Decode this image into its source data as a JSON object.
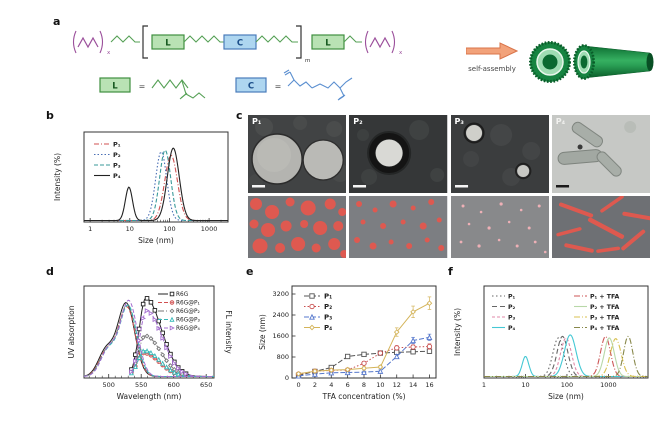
{
  "figure": {
    "panels": {
      "a": "a",
      "b": "b",
      "c": "c",
      "d": "d",
      "e": "e",
      "f": "f"
    }
  },
  "panel_a": {
    "l_symbol": "L",
    "c_symbol": "C",
    "equals": "=",
    "peg_sub": "x",
    "repeat_sub": "m",
    "arrow_label": "self-assembly",
    "colors": {
      "l_block": "#b9e2b4",
      "c_block": "#aed6f0",
      "peg": "#9b4f9b",
      "linker": "#55a055",
      "tube_green": "#168441",
      "arrow": "#f2a27a"
    }
  },
  "panel_c": {
    "tem_labels": [
      "P₁",
      "P₂",
      "P₃",
      "P₄"
    ]
  },
  "chart_data": [
    {
      "panel": "b",
      "type": "line",
      "xscale": "log",
      "xlabel": "Size (nm)",
      "ylabel": "Intensity (%)",
      "xticks": [
        1,
        10,
        100,
        1000
      ],
      "xlim": [
        0.7,
        3000
      ],
      "legend_position": "top-left",
      "grid": false,
      "series": [
        {
          "name": "P₁",
          "color": "#d05050",
          "dash": "5,2,1,2",
          "peaks": [
            {
              "center": 110,
              "sigma": 0.16,
              "height": 90
            }
          ]
        },
        {
          "name": "P₂",
          "color": "#4a6fb5",
          "dash": "1.5,2",
          "peaks": [
            {
              "center": 62,
              "sigma": 0.14,
              "height": 95
            }
          ]
        },
        {
          "name": "P₃",
          "color": "#3a9a9a",
          "dash": "4,2",
          "peaks": [
            {
              "center": 78,
              "sigma": 0.14,
              "height": 97
            }
          ]
        },
        {
          "name": "P₄",
          "color": "#222222",
          "dash": null,
          "peaks": [
            {
              "center": 9.5,
              "sigma": 0.09,
              "height": 46
            },
            {
              "center": 125,
              "sigma": 0.15,
              "height": 100
            }
          ]
        }
      ]
    },
    {
      "panel": "d",
      "type": "line",
      "xlabel": "Wavelength (nm)",
      "ylabel_left": "UV absorption",
      "ylabel_right": "FL intensity",
      "xticks": [
        500,
        550,
        600,
        650
      ],
      "xlim": [
        462,
        662
      ],
      "legend_position": "top-right",
      "grid": false,
      "series": [
        {
          "name": "R6G",
          "color": "#222222",
          "dash": null,
          "marker": "square",
          "absorption": {
            "center": 527,
            "height": 93
          },
          "emission": {
            "center": 557,
            "height": 100
          }
        },
        {
          "name": "R6G@P₁",
          "color": "#d05050",
          "dash": "4,2",
          "marker": "circle-x",
          "absorption": {
            "center": 528,
            "height": 88
          },
          "emission": {
            "center": 554,
            "height": 30
          }
        },
        {
          "name": "R6G@P₂",
          "color": "#777777",
          "dash": "6,2,1,2",
          "marker": "diamond",
          "absorption": {
            "center": 529,
            "height": 91
          },
          "emission": {
            "center": 556,
            "height": 52
          }
        },
        {
          "name": "R6G@P₃",
          "color": "#35b8b8",
          "dash": "4,2",
          "marker": "triangle",
          "absorption": {
            "center": 530,
            "height": 90
          },
          "emission": {
            "center": 555,
            "height": 33
          }
        },
        {
          "name": "R6G@P₄",
          "color": "#a56fd0",
          "dash": "4,2",
          "marker": "triangle-right",
          "absorption": {
            "center": 531,
            "height": 96
          },
          "emission": {
            "center": 558,
            "height": 84
          }
        }
      ]
    },
    {
      "panel": "e",
      "type": "scatter",
      "xlabel": "TFA concentration (%)",
      "ylabel": "Size (nm)",
      "x": [
        0,
        2,
        4,
        6,
        8,
        10,
        12,
        14,
        16
      ],
      "yticks": [
        0,
        800,
        1600,
        2400,
        3200
      ],
      "xlim": [
        -0.8,
        16.8
      ],
      "ylim": [
        0,
        3200
      ],
      "legend_position": "top-left",
      "grid": false,
      "series": [
        {
          "name": "P₁",
          "color": "#555555",
          "dash": "5,2",
          "marker": "square",
          "values": [
            100,
            250,
            400,
            820,
            900,
            950,
            980,
            1000,
            1020
          ],
          "yerr": [
            40,
            50,
            60,
            60,
            60,
            60,
            60,
            80,
            80
          ]
        },
        {
          "name": "P₂",
          "color": "#c94f4f",
          "dash": "1.5,2",
          "marker": "circle",
          "values": [
            150,
            260,
            290,
            310,
            560,
            950,
            1150,
            1180,
            1200
          ],
          "yerr": [
            40,
            50,
            50,
            50,
            60,
            60,
            80,
            80,
            100
          ]
        },
        {
          "name": "P₃",
          "color": "#5577cc",
          "dash": "5,2",
          "marker": "triangle",
          "values": [
            80,
            150,
            200,
            210,
            220,
            260,
            820,
            1430,
            1550
          ],
          "yerr": [
            30,
            40,
            40,
            40,
            40,
            50,
            80,
            120,
            120
          ]
        },
        {
          "name": "P₄",
          "color": "#d4b45a",
          "dash": null,
          "marker": "diamond",
          "values": [
            160,
            260,
            300,
            320,
            370,
            420,
            1750,
            2520,
            2850
          ],
          "yerr": [
            50,
            60,
            60,
            60,
            60,
            60,
            160,
            220,
            240
          ]
        }
      ]
    },
    {
      "panel": "f",
      "type": "line",
      "xscale": "log",
      "xlabel": "Size (nm)",
      "ylabel": "Intensity (%)",
      "xticks": [
        1,
        10,
        100,
        1000
      ],
      "xlim": [
        1,
        9000
      ],
      "legend_position": "top",
      "legend_columns": 2,
      "grid": false,
      "series": [
        {
          "name": "P₁",
          "color": "#666666",
          "dash": "1.5,2.5",
          "peaks": [
            {
              "center": 62,
              "sigma": 0.13,
              "height": 52
            }
          ]
        },
        {
          "name": "P₂",
          "color": "#666666",
          "dash": "5,3",
          "peaks": [
            {
              "center": 78,
              "sigma": 0.13,
              "height": 54
            }
          ]
        },
        {
          "name": "P₃",
          "color": "#e08aa8",
          "dash": "3,2",
          "peaks": [
            {
              "center": 95,
              "sigma": 0.13,
              "height": 52
            }
          ]
        },
        {
          "name": "P₄",
          "color": "#45c8d4",
          "dash": null,
          "peaks": [
            {
              "center": 10,
              "sigma": 0.08,
              "height": 27
            },
            {
              "center": 120,
              "sigma": 0.14,
              "height": 56
            }
          ]
        },
        {
          "name": "P₁ + TFA",
          "color": "#cc5555",
          "dash": "6,2,1,2",
          "peaks": [
            {
              "center": 850,
              "sigma": 0.12,
              "height": 54
            }
          ]
        },
        {
          "name": "P₂ + TFA",
          "color": "#b8d8a8",
          "dash": null,
          "peaks": [
            {
              "center": 1050,
              "sigma": 0.12,
              "height": 52
            }
          ]
        },
        {
          "name": "P₃ + TFA",
          "color": "#d8c050",
          "dash": "6,2,1,2",
          "peaks": [
            {
              "center": 1500,
              "sigma": 0.13,
              "height": 51
            }
          ]
        },
        {
          "name": "P₄ + TFA",
          "color": "#88884a",
          "dash": "6,2,1,2",
          "peaks": [
            {
              "center": 3000,
              "sigma": 0.11,
              "height": 54
            }
          ]
        }
      ]
    }
  ]
}
